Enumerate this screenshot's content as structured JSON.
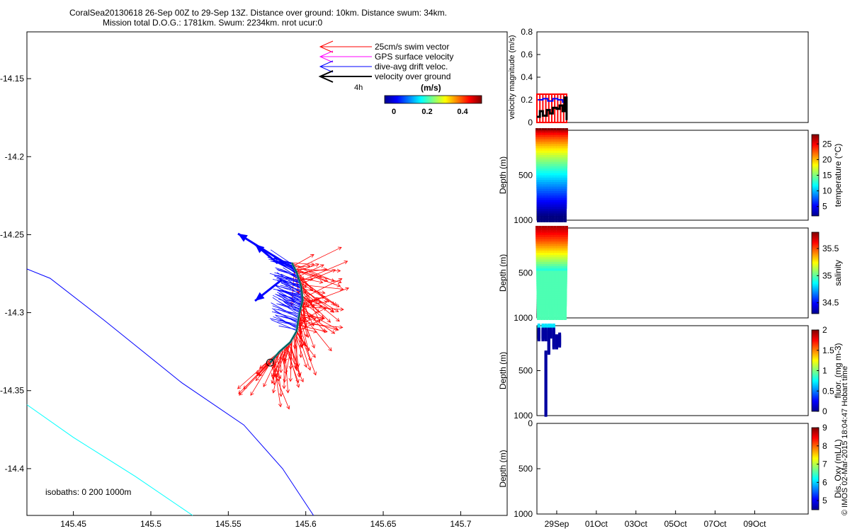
{
  "figure": {
    "title_line1": "CoralSea20130618 26-Sep 00Z to 29-Sep 13Z. Distance over ground: 10km. Distance swum: 34km.",
    "title_line2": "Mission total D.O.G.: 1781km. Swum: 2234km. nrot ucur:0",
    "side_note": "© IMOS 02-Mar-2015 18:04:47 Hobart time",
    "colors": {
      "swim": "#ff0000",
      "gps": "#ff00ff",
      "drift": "#0000ff",
      "ground": "#000000",
      "isobath_200": "#0000ff",
      "isobath_1000": "#00ffff",
      "track": "#008080"
    }
  },
  "legend": {
    "items": [
      "25cm/s swim vector",
      "GPS surface velocity",
      "dive-avg drift veloc.",
      "velocity over ground"
    ],
    "time_label": "4h"
  },
  "colorbar_map": {
    "label": "(m/s)",
    "ticks": [
      "0",
      "0.2",
      "0.4"
    ]
  },
  "map": {
    "isobaths_label": "isobaths: 0   200  1000m"
  },
  "chart_data": [
    {
      "type": "scatter",
      "name": "map",
      "xlim": [
        145.42,
        145.73
      ],
      "ylim": [
        -14.43,
        -14.12
      ],
      "xticks": [
        "145.45",
        "145.5",
        "145.55",
        "145.6",
        "145.65",
        "145.7"
      ],
      "yticks": [
        "-14.15",
        "-14.2",
        "-14.25",
        "-14.3",
        "-14.35",
        "-14.4"
      ],
      "track": [
        [
          145.577,
          -14.332
        ],
        [
          145.583,
          -14.325
        ],
        [
          145.59,
          -14.319
        ],
        [
          145.594,
          -14.312
        ],
        [
          145.596,
          -14.3
        ],
        [
          145.598,
          -14.292
        ],
        [
          145.597,
          -14.283
        ],
        [
          145.594,
          -14.274
        ],
        [
          145.591,
          -14.268
        ]
      ],
      "isobath_200": [
        [
          145.42,
          -14.272
        ],
        [
          145.435,
          -14.278
        ],
        [
          145.47,
          -14.305
        ],
        [
          145.52,
          -14.345
        ],
        [
          145.56,
          -14.372
        ],
        [
          145.585,
          -14.4
        ],
        [
          145.605,
          -14.43
        ]
      ],
      "isobath_1000": [
        [
          145.42,
          -14.359
        ],
        [
          145.45,
          -14.38
        ],
        [
          145.49,
          -14.405
        ],
        [
          145.527,
          -14.43
        ]
      ]
    },
    {
      "type": "line",
      "name": "velocity magnitude",
      "ylabel": "velocity magnitude (m/s)",
      "ylim": [
        0,
        0.8
      ],
      "yticks": [
        "0",
        "0.2",
        "0.4",
        "0.6",
        "0.8"
      ],
      "xlim_days": [
        28,
        41.7
      ],
      "series": [
        {
          "color": "#ff0000",
          "values": [
            [
              28.0,
              0.25
            ],
            [
              28.15,
              0.25
            ],
            [
              28.3,
              0.25
            ],
            [
              28.45,
              0.25
            ],
            [
              28.6,
              0.25
            ],
            [
              28.75,
              0.25
            ],
            [
              28.9,
              0.25
            ],
            [
              29.05,
              0.25
            ],
            [
              29.2,
              0.25
            ],
            [
              29.35,
              0.25
            ],
            [
              29.5,
              0.25
            ]
          ]
        },
        {
          "color": "#0000ff",
          "values": [
            [
              28.05,
              0.2
            ],
            [
              28.3,
              0.21
            ],
            [
              28.55,
              0.19
            ],
            [
              28.8,
              0.21
            ],
            [
              29.05,
              0.2
            ],
            [
              29.3,
              0.18
            ],
            [
              29.45,
              0.2
            ]
          ]
        },
        {
          "color": "#000000",
          "values": [
            [
              28.0,
              0.05
            ],
            [
              28.15,
              0.1
            ],
            [
              28.3,
              0.06
            ],
            [
              28.5,
              0.11
            ],
            [
              28.65,
              0.08
            ],
            [
              28.8,
              0.13
            ],
            [
              29.0,
              0.12
            ],
            [
              29.15,
              0.15
            ],
            [
              29.3,
              0.1
            ],
            [
              29.4,
              0.22
            ],
            [
              29.5,
              0.02
            ]
          ]
        }
      ]
    },
    {
      "type": "scatter",
      "name": "temperature",
      "ylabel": "Depth (m)",
      "yticks": [
        "500",
        "1000"
      ],
      "ylim": [
        0,
        1000
      ],
      "colorbar_label": "temperature (°C)",
      "colorbar_ticks": [
        "5",
        "10",
        "15",
        "20",
        "25"
      ],
      "clim": [
        2,
        28
      ],
      "dives_start_day": 28.0,
      "dives_end_day": 29.5,
      "dives": 10,
      "max_depth": 1000
    },
    {
      "type": "scatter",
      "name": "salinity",
      "ylabel": "Depth (m)",
      "yticks": [
        "500",
        "1000"
      ],
      "ylim": [
        0,
        1000
      ],
      "colorbar_label": "salinity",
      "colorbar_ticks": [
        "34.5",
        "35",
        "35.5"
      ],
      "clim": [
        34.3,
        35.8
      ],
      "dives_start_day": 28.0,
      "dives_end_day": 29.5,
      "dives": 10,
      "max_depth": 1000
    },
    {
      "type": "scatter",
      "name": "fluorescence",
      "ylabel": "Depth (m)",
      "yticks": [
        "500",
        "1000"
      ],
      "ylim": [
        0,
        1000
      ],
      "colorbar_label": "fluor. (mg m-3)",
      "colorbar_ticks": [
        "0",
        "0.5",
        "1",
        "1.5",
        "2"
      ],
      "clim": [
        0,
        2
      ],
      "profiles": [
        [
          28.1,
          0,
          150
        ],
        [
          28.3,
          0,
          150
        ],
        [
          28.45,
          0,
          150
        ],
        [
          28.6,
          0,
          300
        ],
        [
          28.7,
          0,
          120
        ],
        [
          28.85,
          0,
          250
        ],
        [
          29.0,
          120,
          250
        ],
        [
          29.15,
          100,
          220
        ],
        [
          28.45,
          300,
          1000
        ]
      ]
    },
    {
      "type": "scatter",
      "name": "oxygen",
      "ylabel": "Depth (m)",
      "yticks": [
        "0",
        "500",
        "1000"
      ],
      "ylim": [
        0,
        1000
      ],
      "colorbar_label": "Dis. Oxy (mL/L)",
      "colorbar_ticks": [
        "5",
        "6",
        "7",
        "8",
        "9"
      ],
      "clim": [
        4.5,
        9
      ]
    },
    {
      "type": "table",
      "name": "time axis",
      "xticks": [
        "29Sep",
        "01Oct",
        "03Oct",
        "05Oct",
        "07Oct",
        "09Oct"
      ],
      "xtick_days": [
        29,
        31,
        33,
        35,
        37,
        39
      ]
    }
  ]
}
